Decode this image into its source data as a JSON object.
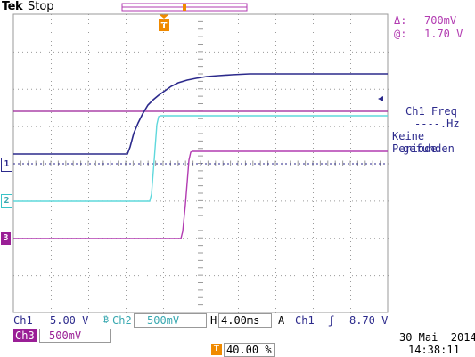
{
  "header": {
    "brand": "Tek",
    "acquisition_status": "Stop"
  },
  "cursor_readout": {
    "delta_symbol": "Δ:",
    "delta_value": "700mV",
    "abs_symbol": "@:",
    "abs_value": "1.70 V"
  },
  "measurement": {
    "line1": "Ch1 Freq",
    "line2": "----.Hz",
    "line3": "Keine Periode",
    "line4": "gefunden"
  },
  "traces": {
    "ch1": {
      "tag": "1",
      "color": "#2c2a8c"
    },
    "ch2": {
      "tag": "2",
      "color": "#5fd8dc"
    },
    "ch3": {
      "tag": "3",
      "color": "#b23bb1"
    }
  },
  "settings": {
    "ch1_label": "Ch1",
    "ch1_scale": "5.00 V",
    "ch2_bw_symbol": "₿",
    "ch2_label": "Ch2",
    "ch2_scale": "500mV",
    "timebase_label": "H",
    "timebase_value": "4.00ms",
    "trigger_mode": "A",
    "trigger_source": "Ch1",
    "trigger_slope_symbol": "ʃ",
    "trigger_level": "8.70 V",
    "ch3_label": "Ch3",
    "ch3_scale": "500mV",
    "trigger_position_marker": "T",
    "trigger_position": "40.00 %"
  },
  "datetime": {
    "date": "30 Mai  2014",
    "time": "14:38:11"
  }
}
